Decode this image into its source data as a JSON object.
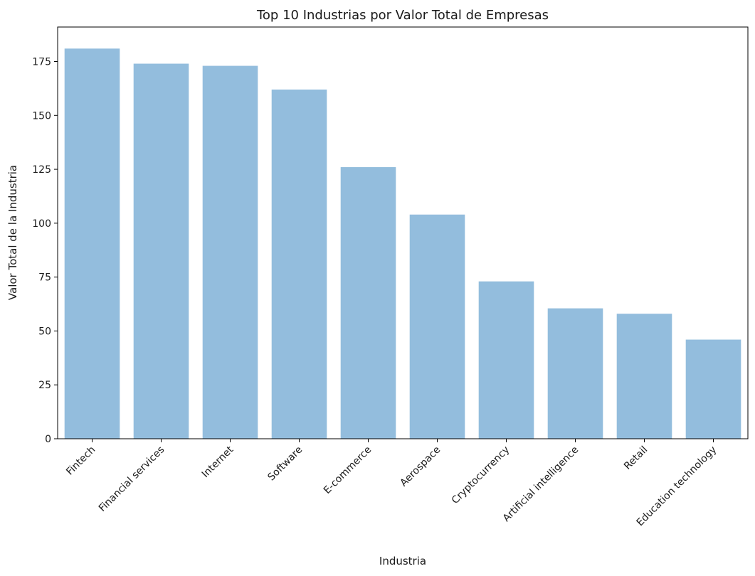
{
  "chart_data": {
    "type": "bar",
    "title": "Top 10 Industrias por Valor Total de Empresas",
    "xlabel": "Industria",
    "ylabel": "Valor Total de la Industria",
    "categories": [
      "Fintech",
      "Financial services",
      "Internet",
      "Software",
      "E-commerce",
      "Aerospace",
      "Cryptocurrency",
      "Artificial intelligence",
      "Retail",
      "Education technology"
    ],
    "values": [
      181,
      174,
      173,
      162,
      126,
      104,
      73,
      60.5,
      58,
      46
    ],
    "ylim": [
      0,
      191
    ],
    "yticks": [
      0,
      25,
      50,
      75,
      100,
      125,
      150,
      175
    ],
    "grid": false,
    "legend": "none",
    "bar_color": "#93bddd",
    "axis_color": "#000000"
  }
}
